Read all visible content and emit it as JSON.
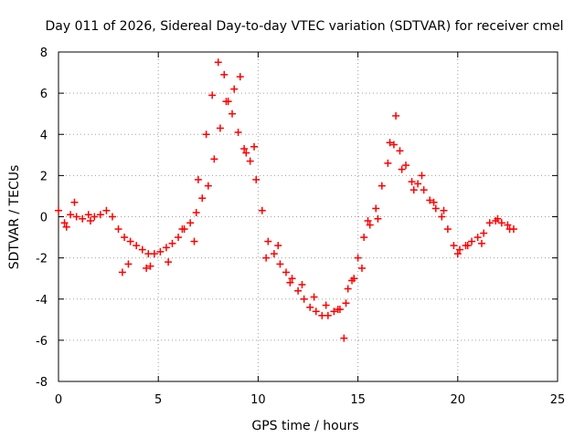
{
  "chart_data": {
    "type": "scatter",
    "title": "Day 011 of 2026, Sidereal Day-to-day VTEC variation (SDTVAR) for receiver cmel",
    "xlabel": "GPS time / hours",
    "ylabel": "SDTVAR / TECUs",
    "xlim": [
      0,
      25
    ],
    "ylim": [
      -8,
      8
    ],
    "xticks": [
      0,
      5,
      10,
      15,
      20,
      25
    ],
    "yticks": [
      -8,
      -6,
      -4,
      -2,
      0,
      2,
      4,
      6,
      8
    ],
    "grid": true,
    "marker": "+",
    "series": [
      {
        "name": "SDTVAR",
        "color": "#ff0000",
        "x": [
          0.0,
          0.3,
          0.6,
          0.9,
          1.2,
          1.5,
          1.8,
          2.1,
          2.4,
          2.7,
          3.0,
          3.3,
          3.6,
          3.9,
          4.2,
          4.5,
          4.8,
          5.1,
          5.4,
          5.7,
          6.0,
          6.3,
          6.6,
          6.9,
          7.2,
          7.5,
          7.8,
          8.1,
          8.4,
          8.7,
          9.0,
          9.3,
          9.6,
          9.9,
          10.2,
          10.5,
          10.8,
          11.1,
          11.4,
          11.7,
          12.0,
          12.3,
          12.6,
          12.9,
          13.2,
          13.5,
          13.8,
          14.1,
          14.4,
          14.7,
          15.0,
          15.3,
          15.6,
          15.9,
          16.2,
          16.5,
          16.8,
          17.1,
          17.4,
          17.7,
          18.0,
          18.3,
          18.6,
          18.9,
          19.2,
          19.5,
          19.8,
          20.1,
          20.4,
          20.7,
          21.0,
          21.3,
          21.6,
          21.9,
          22.2,
          22.5,
          22.8,
          0.4,
          0.8,
          1.6,
          3.2,
          3.5,
          4.4,
          4.6,
          5.5,
          6.2,
          6.8,
          7.0,
          7.4,
          7.7,
          8.0,
          8.3,
          8.5,
          8.8,
          9.1,
          9.4,
          9.8,
          10.4,
          11.0,
          11.6,
          12.2,
          12.8,
          13.4,
          14.0,
          14.3,
          14.5,
          14.8,
          15.2,
          15.5,
          16.0,
          16.6,
          16.9,
          17.2,
          17.8,
          18.2,
          18.8,
          19.3,
          20.0,
          20.5,
          21.2,
          22.0,
          22.6
        ],
        "y": [
          0.3,
          -0.3,
          0.1,
          0.0,
          -0.1,
          0.1,
          0.0,
          0.1,
          0.3,
          0.0,
          -0.6,
          -1.0,
          -1.2,
          -1.4,
          -1.6,
          -1.8,
          -1.8,
          -1.7,
          -1.5,
          -1.3,
          -1.0,
          -0.6,
          -0.3,
          0.2,
          0.9,
          1.5,
          2.8,
          4.3,
          5.6,
          5.0,
          4.1,
          3.3,
          2.7,
          1.8,
          0.3,
          -1.2,
          -1.8,
          -2.3,
          -2.7,
          -3.0,
          -3.6,
          -4.0,
          -4.4,
          -4.6,
          -4.8,
          -4.8,
          -4.6,
          -4.5,
          -4.2,
          -3.1,
          -2.0,
          -1.0,
          -0.4,
          0.4,
          1.5,
          2.6,
          3.5,
          3.2,
          2.5,
          1.7,
          1.6,
          1.3,
          0.8,
          0.4,
          0.0,
          -0.6,
          -1.4,
          -1.6,
          -1.4,
          -1.2,
          -1.0,
          -0.8,
          -0.3,
          -0.2,
          -0.3,
          -0.4,
          -0.6,
          -0.5,
          0.7,
          -0.2,
          -2.7,
          -2.3,
          -2.5,
          -2.4,
          -2.2,
          -0.6,
          -1.2,
          1.8,
          4.0,
          5.9,
          7.5,
          6.9,
          5.6,
          6.2,
          6.8,
          3.1,
          3.4,
          -2.0,
          -1.4,
          -3.2,
          -3.3,
          -3.9,
          -4.3,
          -4.5,
          -5.9,
          -3.5,
          -3.0,
          -2.5,
          -0.2,
          -0.1,
          3.6,
          4.9,
          2.3,
          1.3,
          2.0,
          0.7,
          0.3,
          -1.8,
          -1.4,
          -1.3,
          -0.1,
          -0.6
        ]
      }
    ]
  }
}
